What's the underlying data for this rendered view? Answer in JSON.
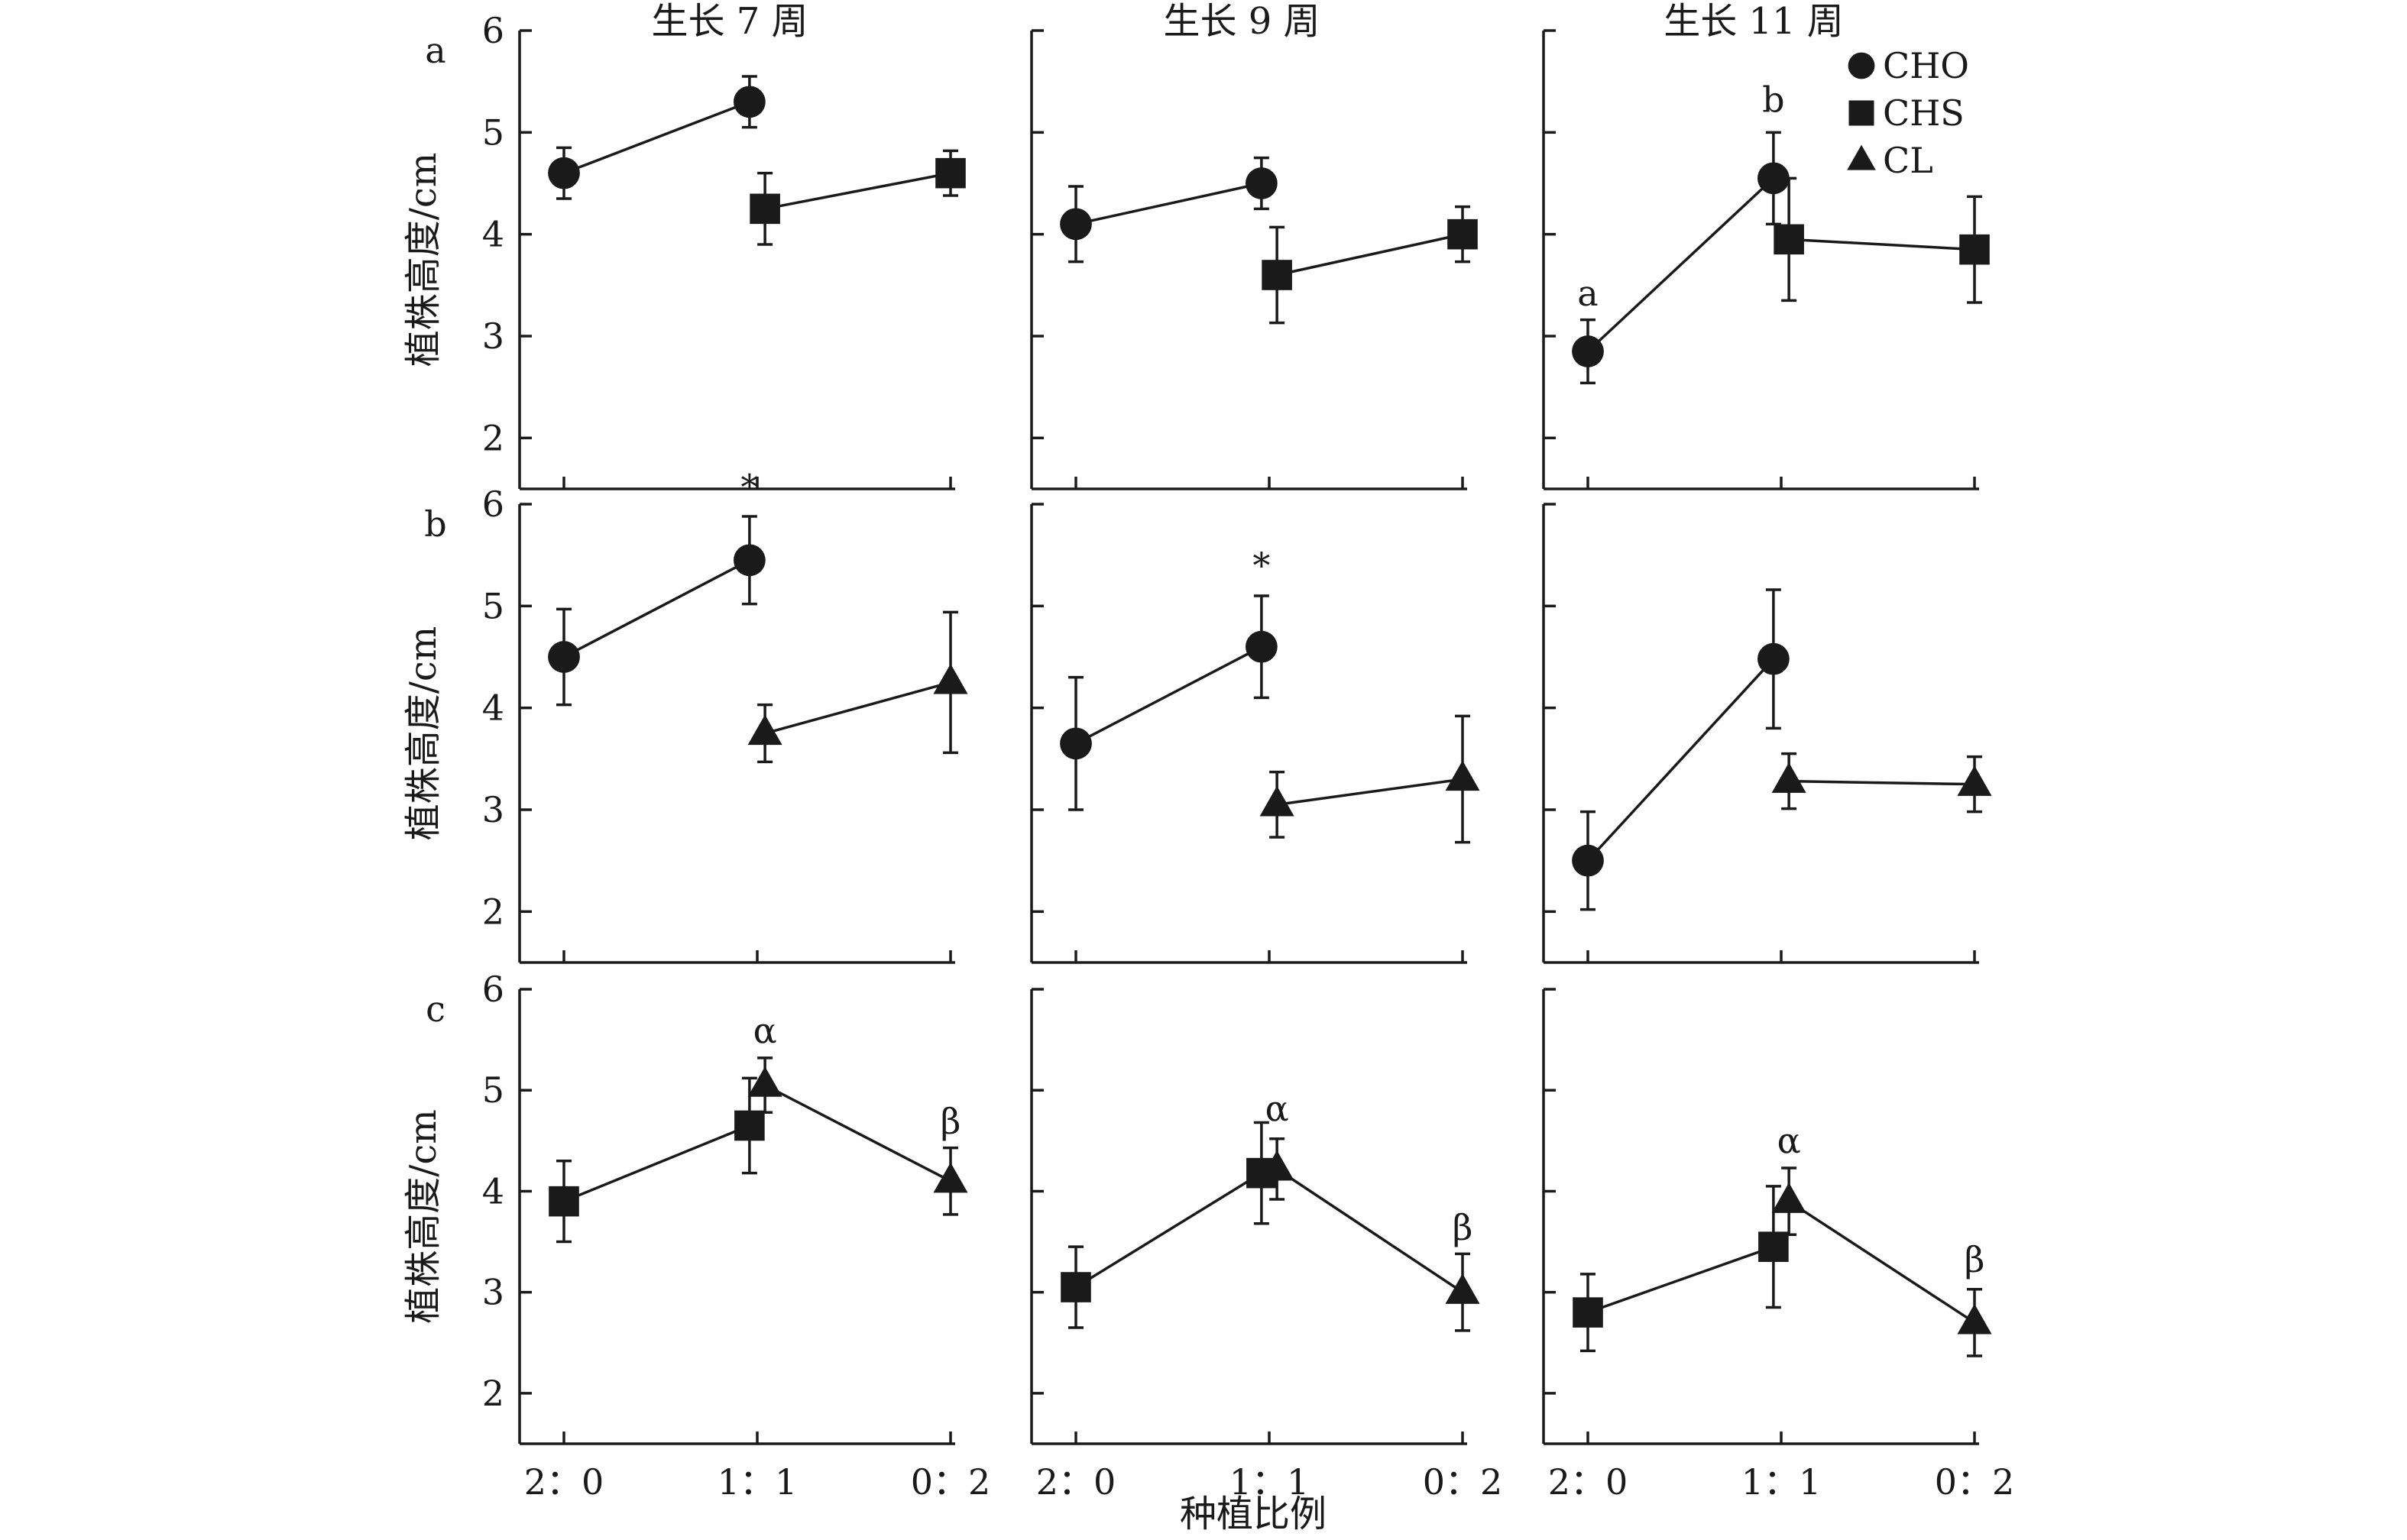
{
  "chart_data": {
    "type": "line",
    "column_titles": [
      "生长 7 周",
      "生长 9 周",
      "生长 11 周"
    ],
    "row_letters": [
      "a",
      "b",
      "c"
    ],
    "ylabel": "植株高度/cm",
    "xlabel": "种植比例",
    "x_categories": [
      "2：0",
      "1：1",
      "0：2"
    ],
    "y_ticks": [
      "2",
      "3",
      "4",
      "5",
      "6"
    ],
    "ylim": [
      1.5,
      6
    ],
    "legend": {
      "placement": "top-right",
      "entries": [
        {
          "name": "CHO",
          "marker": "circle"
        },
        {
          "name": "CHS",
          "marker": "square"
        },
        {
          "name": "CL",
          "marker": "triangle"
        }
      ]
    },
    "panels": [
      {
        "row": 0,
        "col": 0,
        "series": [
          {
            "name": "CHO",
            "marker": "circle",
            "points": [
              {
                "x": 0,
                "y": 4.6,
                "err": 0.25
              },
              {
                "x": 0.96,
                "y": 5.3,
                "err": 0.25
              }
            ]
          },
          {
            "name": "CHS",
            "marker": "square",
            "points": [
              {
                "x": 1.04,
                "y": 4.25,
                "err": 0.35
              },
              {
                "x": 2,
                "y": 4.6,
                "err": 0.22
              }
            ]
          }
        ],
        "annotations": []
      },
      {
        "row": 0,
        "col": 1,
        "series": [
          {
            "name": "CHO",
            "marker": "circle",
            "points": [
              {
                "x": 0,
                "y": 4.1,
                "err": 0.37
              },
              {
                "x": 0.96,
                "y": 4.5,
                "err": 0.25
              }
            ]
          },
          {
            "name": "CHS",
            "marker": "square",
            "points": [
              {
                "x": 1.04,
                "y": 3.6,
                "err": 0.47
              },
              {
                "x": 2,
                "y": 4.0,
                "err": 0.27
              }
            ]
          }
        ],
        "annotations": []
      },
      {
        "row": 0,
        "col": 2,
        "series": [
          {
            "name": "CHO",
            "marker": "circle",
            "points": [
              {
                "x": 0,
                "y": 2.85,
                "err": 0.31
              },
              {
                "x": 0.96,
                "y": 4.55,
                "err": 0.45
              }
            ]
          },
          {
            "name": "CHS",
            "marker": "square",
            "points": [
              {
                "x": 1.04,
                "y": 3.95,
                "err": 0.6
              },
              {
                "x": 2,
                "y": 3.85,
                "err": 0.52
              }
            ]
          }
        ],
        "annotations": [
          {
            "text": "a",
            "x": 0,
            "y": 3.3
          },
          {
            "text": "b",
            "x": 0.96,
            "y": 5.2
          }
        ]
      },
      {
        "row": 1,
        "col": 0,
        "series": [
          {
            "name": "CHO",
            "marker": "circle",
            "points": [
              {
                "x": 0,
                "y": 4.5,
                "err": 0.47
              },
              {
                "x": 0.96,
                "y": 5.45,
                "err": 0.43
              }
            ]
          },
          {
            "name": "CL",
            "marker": "triangle",
            "points": [
              {
                "x": 1.04,
                "y": 3.75,
                "err": 0.28
              },
              {
                "x": 2,
                "y": 4.25,
                "err": 0.69
              }
            ]
          }
        ],
        "annotations": [
          {
            "text": "*",
            "x": 0.96,
            "y": 6.05
          }
        ]
      },
      {
        "row": 1,
        "col": 1,
        "series": [
          {
            "name": "CHO",
            "marker": "circle",
            "points": [
              {
                "x": 0,
                "y": 3.65,
                "err": 0.65
              },
              {
                "x": 0.96,
                "y": 4.6,
                "err": 0.5
              }
            ]
          },
          {
            "name": "CL",
            "marker": "triangle",
            "points": [
              {
                "x": 1.04,
                "y": 3.05,
                "err": 0.32
              },
              {
                "x": 2,
                "y": 3.3,
                "err": 0.62
              }
            ]
          }
        ],
        "annotations": [
          {
            "text": "*",
            "x": 0.96,
            "y": 5.28
          }
        ]
      },
      {
        "row": 1,
        "col": 2,
        "series": [
          {
            "name": "CHO",
            "marker": "circle",
            "points": [
              {
                "x": 0,
                "y": 2.5,
                "err": 0.48
              },
              {
                "x": 0.96,
                "y": 4.48,
                "err": 0.68
              }
            ]
          },
          {
            "name": "CL",
            "marker": "triangle",
            "points": [
              {
                "x": 1.04,
                "y": 3.28,
                "err": 0.27
              },
              {
                "x": 2,
                "y": 3.25,
                "err": 0.27
              }
            ]
          }
        ],
        "annotations": []
      },
      {
        "row": 2,
        "col": 0,
        "series": [
          {
            "name": "CHS",
            "marker": "square",
            "points": [
              {
                "x": 0,
                "y": 3.9,
                "err": 0.4
              },
              {
                "x": 0.96,
                "y": 4.65,
                "err": 0.47
              }
            ]
          },
          {
            "name": "CL",
            "marker": "triangle",
            "points": [
              {
                "x": 1.04,
                "y": 5.05,
                "err": 0.27
              },
              {
                "x": 2,
                "y": 4.1,
                "err": 0.33
              }
            ]
          }
        ],
        "annotations": [
          {
            "text": "α",
            "x": 1.04,
            "y": 5.47
          },
          {
            "text": "β",
            "x": 2,
            "y": 4.57
          }
        ]
      },
      {
        "row": 2,
        "col": 1,
        "series": [
          {
            "name": "CHS",
            "marker": "square",
            "points": [
              {
                "x": 0,
                "y": 3.05,
                "err": 0.4
              },
              {
                "x": 0.96,
                "y": 4.18,
                "err": 0.5
              }
            ]
          },
          {
            "name": "CL",
            "marker": "triangle",
            "points": [
              {
                "x": 1.04,
                "y": 4.22,
                "err": 0.3
              },
              {
                "x": 2,
                "y": 3.0,
                "err": 0.38
              }
            ]
          }
        ],
        "annotations": [
          {
            "text": "α",
            "x": 1.04,
            "y": 4.7
          },
          {
            "text": "β",
            "x": 2,
            "y": 3.52
          }
        ]
      },
      {
        "row": 2,
        "col": 2,
        "series": [
          {
            "name": "CHS",
            "marker": "square",
            "points": [
              {
                "x": 0,
                "y": 2.8,
                "err": 0.38
              },
              {
                "x": 0.96,
                "y": 3.45,
                "err": 0.6
              }
            ]
          },
          {
            "name": "CL",
            "marker": "triangle",
            "points": [
              {
                "x": 1.04,
                "y": 3.9,
                "err": 0.33
              },
              {
                "x": 2,
                "y": 2.7,
                "err": 0.33
              }
            ]
          }
        ],
        "annotations": [
          {
            "text": "α",
            "x": 1.04,
            "y": 4.38
          },
          {
            "text": "β",
            "x": 2,
            "y": 3.2
          }
        ]
      }
    ]
  }
}
